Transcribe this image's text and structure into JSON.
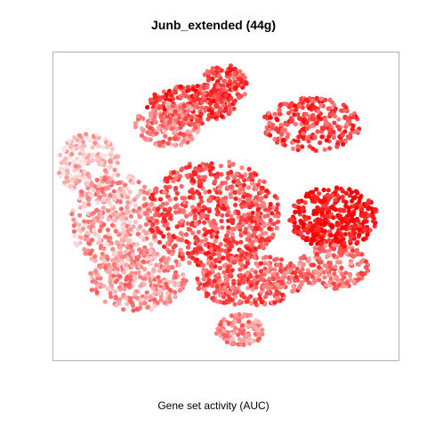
{
  "title": "Junb_extended (44g)",
  "chart_data": {
    "type": "scatter",
    "title": "Junb_extended (44g)",
    "xlabel": "Gene set activity (AUC)",
    "ylabel": "",
    "color_scale": {
      "low": "#fde4e4",
      "high": "#ff0000",
      "meaning": "gene set activity (AUC)"
    },
    "grid": false,
    "legend": "none",
    "clusters": [
      {
        "region": "top",
        "activity": 0.7
      },
      {
        "region": "top-center",
        "activity": 0.75
      },
      {
        "region": "upper-left",
        "activity": 0.45
      },
      {
        "region": "upper-right",
        "activity": 0.7
      },
      {
        "region": "far-left",
        "activity": 0.15
      },
      {
        "region": "left",
        "activity": 0.3
      },
      {
        "region": "center",
        "activity": 0.65
      },
      {
        "region": "right",
        "activity": 0.95
      },
      {
        "region": "lower-right",
        "activity": 0.5
      },
      {
        "region": "lower-center",
        "activity": 0.6
      },
      {
        "region": "lower-left",
        "activity": 0.35
      },
      {
        "region": "bottom",
        "activity": 0.4
      }
    ]
  }
}
